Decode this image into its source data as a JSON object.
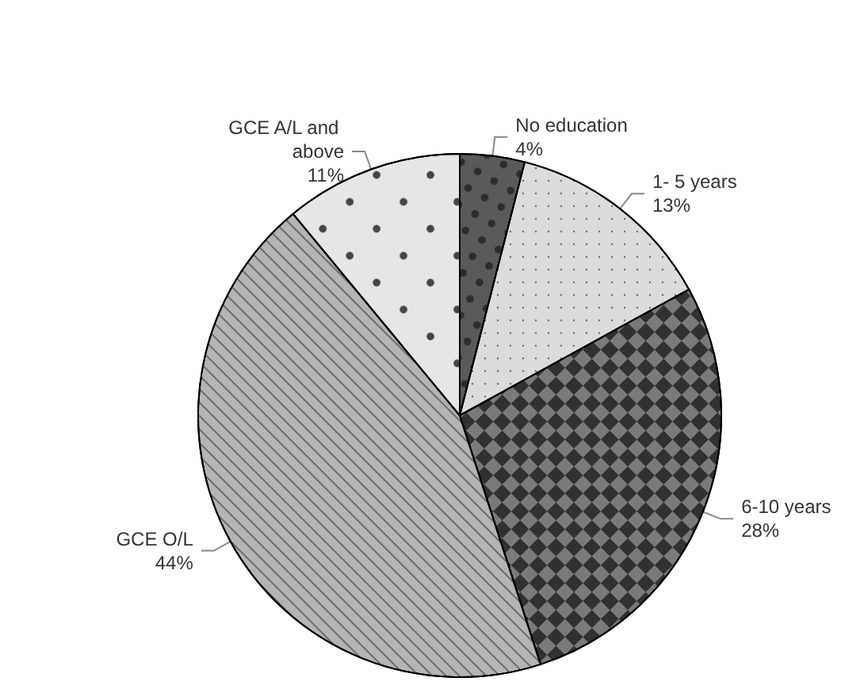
{
  "chart_data": {
    "type": "pie",
    "categories": [
      "No education",
      "1- 5 years",
      "6-10 years",
      "GCE O/L",
      "GCE A/L and above"
    ],
    "values": [
      4,
      13,
      28,
      44,
      11
    ],
    "value_labels": [
      "4%",
      "13%",
      "28%",
      "44%",
      "11%"
    ],
    "colors": [
      "#5a5a5a",
      "#dcdcdc",
      "#7a7a7a",
      "#b4b4b4",
      "#e6e6e6"
    ]
  }
}
